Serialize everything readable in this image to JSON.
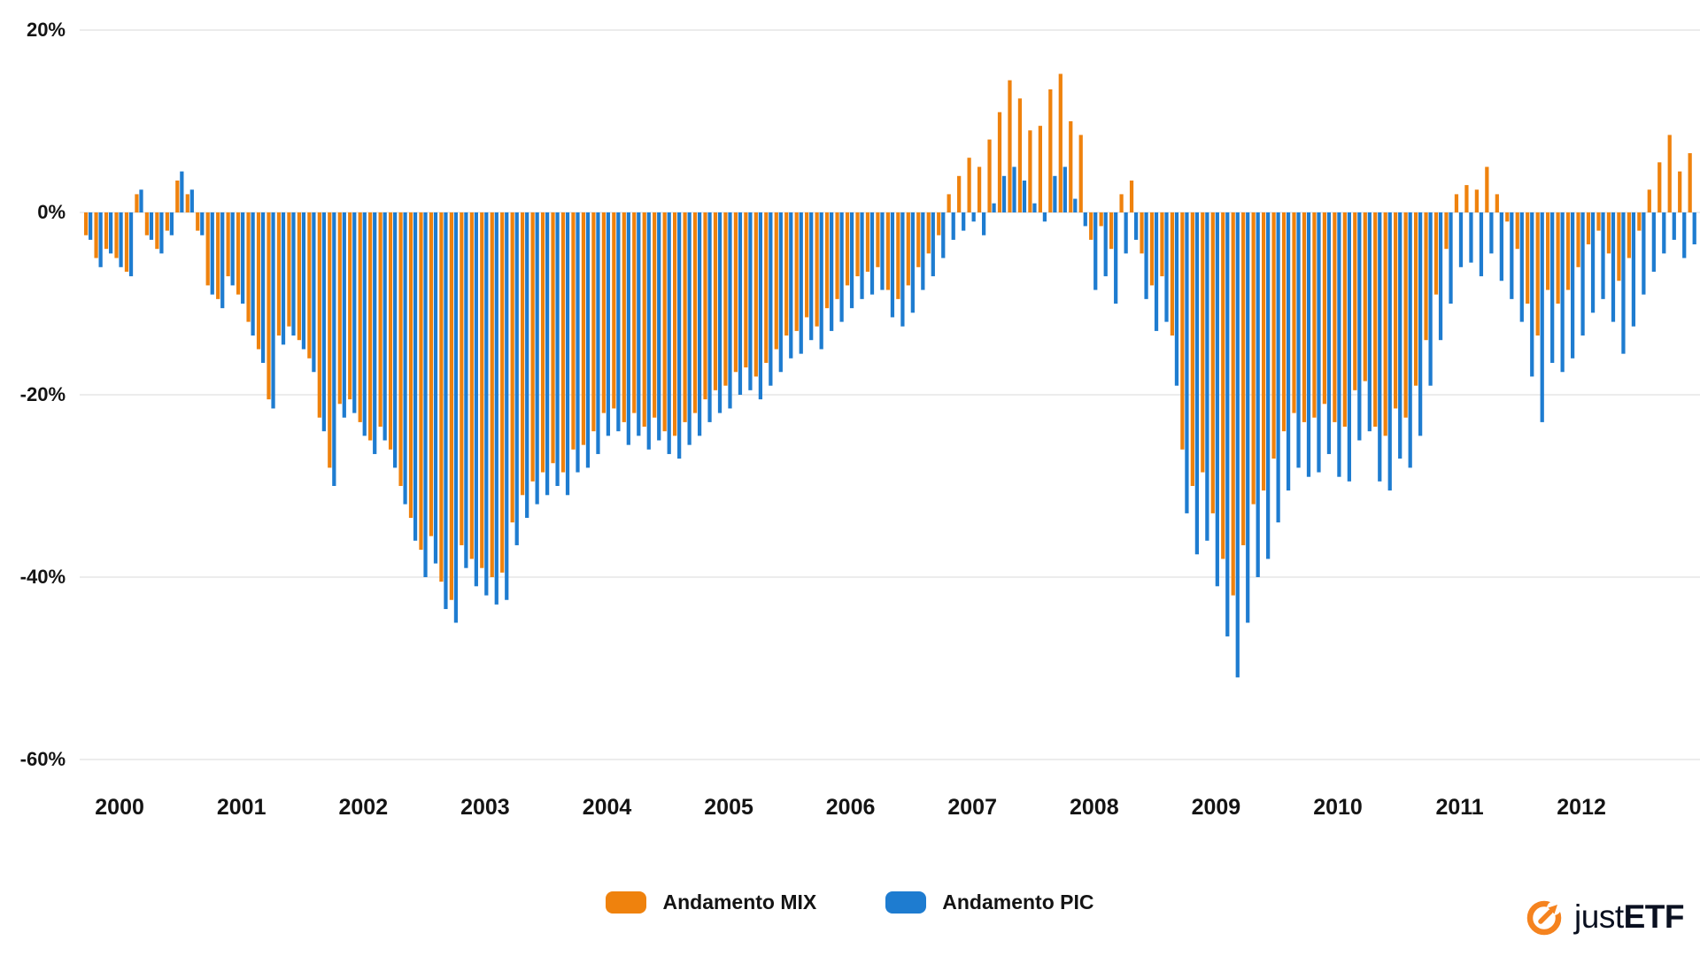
{
  "axes": {
    "y_ticks": [
      {
        "label": "20%",
        "value": 20
      },
      {
        "label": "0%",
        "value": 0
      },
      {
        "label": "-20%",
        "value": -20
      },
      {
        "label": "-40%",
        "value": -40
      },
      {
        "label": "-60%",
        "value": -60
      }
    ],
    "x_ticks": [
      {
        "label": "2000",
        "month_index": 3
      },
      {
        "label": "2001",
        "month_index": 15
      },
      {
        "label": "2002",
        "month_index": 27
      },
      {
        "label": "2003",
        "month_index": 39
      },
      {
        "label": "2004",
        "month_index": 51
      },
      {
        "label": "2005",
        "month_index": 63
      },
      {
        "label": "2006",
        "month_index": 75
      },
      {
        "label": "2007",
        "month_index": 87
      },
      {
        "label": "2008",
        "month_index": 99
      },
      {
        "label": "2009",
        "month_index": 111
      },
      {
        "label": "2010",
        "month_index": 123
      },
      {
        "label": "2011",
        "month_index": 135
      },
      {
        "label": "2012",
        "month_index": 147
      }
    ]
  },
  "legend": {
    "items": [
      {
        "label": "Andamento MIX",
        "color": "#ef820d"
      },
      {
        "label": "Andamento PIC",
        "color": "#1e7cd0"
      }
    ]
  },
  "branding": {
    "logo_regular": "just",
    "logo_bold": "ETF",
    "logo_icon_color": "#f5831f",
    "logo_text_color": "#0a1020"
  },
  "chart_data": {
    "type": "bar",
    "title": "",
    "xlabel": "",
    "ylabel": "",
    "unit": "%",
    "grid": true,
    "legend_position": "bottom",
    "ylim": [
      -62,
      22
    ],
    "y_tick_values": [
      20,
      0,
      -20,
      -40,
      -60
    ],
    "x_start": "1999-10",
    "x_frequency": "monthly",
    "x_months_count": 159,
    "x_visible_tick_labels": [
      "2000",
      "2001",
      "2002",
      "2003",
      "2004",
      "2005",
      "2006",
      "2007",
      "2008",
      "2009",
      "2010",
      "2011",
      "2012"
    ],
    "grid_color": "#e6e6e6",
    "series": [
      {
        "name": "Andamento MIX",
        "color": "#ef820d",
        "values": [
          -2.5,
          -5,
          -4,
          -5,
          -6.5,
          2,
          -2.5,
          -4,
          -2,
          3.5,
          2,
          -2,
          -8,
          -9.5,
          -7,
          -9,
          -12,
          -15,
          -20.5,
          -13.5,
          -12.5,
          -14,
          -16,
          -22.5,
          -28,
          -21,
          -20.5,
          -23,
          -25,
          -23.5,
          -26,
          -30,
          -33.5,
          -37,
          -35.5,
          -40.5,
          -42.5,
          -36.5,
          -38,
          -39,
          -40,
          -39.5,
          -34,
          -31,
          -29.5,
          -28.5,
          -27.5,
          -28.5,
          -26,
          -25.5,
          -24,
          -22,
          -21.5,
          -23,
          -22,
          -23.5,
          -22.5,
          -24,
          -24.5,
          -23,
          -22,
          -20.5,
          -19.5,
          -19,
          -17.5,
          -17,
          -18,
          -16.5,
          -15,
          -13.5,
          -13,
          -11.5,
          -12.5,
          -10.5,
          -9.5,
          -8,
          -7,
          -6.5,
          -6,
          -8.5,
          -9.5,
          -8,
          -6,
          -4.5,
          -2.5,
          2,
          4,
          6,
          5,
          8,
          11,
          14.5,
          12.5,
          9,
          9.5,
          13.5,
          15.2,
          10,
          8.5,
          -3,
          -1.5,
          -4,
          2,
          3.5,
          -4.5,
          -8,
          -7,
          -13.5,
          -26,
          -30,
          -28.5,
          -33,
          -38,
          -42,
          -36.5,
          -32,
          -30.5,
          -27,
          -24,
          -22,
          -23,
          -22.5,
          -21,
          -23,
          -23.5,
          -19.5,
          -18.5,
          -23.5,
          -24.5,
          -21.5,
          -22.5,
          -19,
          -14,
          -9,
          -4,
          2,
          3,
          2.5,
          5,
          2,
          -1,
          -4,
          -10,
          -13.5,
          -8.5,
          -10,
          -8.5,
          -6,
          -3.5,
          -2,
          -4.5,
          -7.5,
          -5,
          -2,
          2.5,
          5.5,
          8.5,
          4.5,
          6.5
        ]
      },
      {
        "name": "Andamento PIC",
        "color": "#1e7cd0",
        "values": [
          -3,
          -6,
          -4.5,
          -6,
          -7,
          2.5,
          -3,
          -4.5,
          -2.5,
          4.5,
          2.5,
          -2.5,
          -9,
          -10.5,
          -8,
          -10,
          -13.5,
          -16.5,
          -21.5,
          -14.5,
          -13.5,
          -15,
          -17.5,
          -24,
          -30,
          -22.5,
          -22,
          -24.5,
          -26.5,
          -25,
          -28,
          -32,
          -36,
          -40,
          -38.5,
          -43.5,
          -45,
          -39,
          -41,
          -42,
          -43,
          -42.5,
          -36.5,
          -33.5,
          -32,
          -31,
          -30,
          -31,
          -28.5,
          -28,
          -26.5,
          -24.5,
          -24,
          -25.5,
          -24.5,
          -26,
          -25,
          -26.5,
          -27,
          -25.5,
          -24.5,
          -23,
          -22,
          -21.5,
          -20,
          -19.5,
          -20.5,
          -19,
          -17.5,
          -16,
          -15.5,
          -14,
          -15,
          -13,
          -12,
          -10.5,
          -9.5,
          -9,
          -8.5,
          -11.5,
          -12.5,
          -11,
          -8.5,
          -7,
          -5,
          -3,
          -2,
          -1,
          -2.5,
          1,
          4,
          5,
          3.5,
          1,
          -1,
          4,
          5,
          1.5,
          -1.5,
          -8.5,
          -7,
          -10,
          -4.5,
          -3,
          -9.5,
          -13,
          -12,
          -19,
          -33,
          -37.5,
          -36,
          -41,
          -46.5,
          -51,
          -45,
          -40,
          -38,
          -34,
          -30.5,
          -28,
          -29,
          -28.5,
          -26.5,
          -29,
          -29.5,
          -25,
          -24,
          -29.5,
          -30.5,
          -27,
          -28,
          -24.5,
          -19,
          -14,
          -10,
          -6,
          -5.5,
          -7,
          -4.5,
          -7.5,
          -9.5,
          -12,
          -18,
          -23,
          -16.5,
          -17.5,
          -16,
          -13.5,
          -11,
          -9.5,
          -12,
          -15.5,
          -12.5,
          -9,
          -6.5,
          -4.5,
          -3,
          -5,
          -3.5
        ]
      }
    ]
  }
}
